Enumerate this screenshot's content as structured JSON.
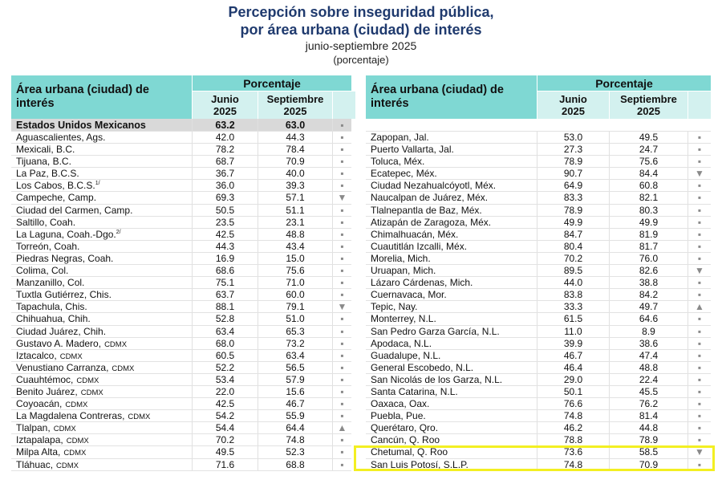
{
  "title": {
    "line1": "Percepción sobre inseguridad pública,",
    "line2": "por área urbana (ciudad) de interés",
    "period": "junio-septiembre 2025",
    "unit": "(porcentaje)"
  },
  "tables": [
    {
      "header": {
        "area": "Área urbana (ciudad) de interés",
        "group": "Porcentaje",
        "col1": "Junio 2025",
        "col2": "Septiembre 2025"
      },
      "national": {
        "name": "Estados Unidos Mexicanos",
        "junio": "63.2",
        "septiembre": "63.0",
        "trend": "▪"
      },
      "rows": [
        {
          "name": "Aguascalientes, Ags.",
          "junio": "42.0",
          "septiembre": "44.3",
          "trend": "▪"
        },
        {
          "name": "Mexicali, B.C.",
          "junio": "78.2",
          "septiembre": "78.4",
          "trend": "▪"
        },
        {
          "name": "Tijuana, B.C.",
          "junio": "68.7",
          "septiembre": "70.9",
          "trend": "▪"
        },
        {
          "name": "La Paz, B.C.S.",
          "junio": "36.7",
          "septiembre": "40.0",
          "trend": "▪"
        },
        {
          "name": "Los Cabos, B.C.S.",
          "sup": "1/",
          "junio": "36.0",
          "septiembre": "39.3",
          "trend": "▪"
        },
        {
          "name": "Campeche, Camp.",
          "junio": "69.3",
          "septiembre": "57.1",
          "trend": "▼"
        },
        {
          "name": "Ciudad del Carmen, Camp.",
          "junio": "50.5",
          "septiembre": "51.1",
          "trend": "▪"
        },
        {
          "name": "Saltillo, Coah.",
          "junio": "23.5",
          "septiembre": "23.1",
          "trend": "▪"
        },
        {
          "name": "La Laguna, Coah.-Dgo.",
          "sup": "2/",
          "junio": "42.5",
          "septiembre": "48.8",
          "trend": "▪"
        },
        {
          "name": "Torreón, Coah.",
          "junio": "44.3",
          "septiembre": "43.4",
          "trend": "▪"
        },
        {
          "name": "Piedras Negras, Coah.",
          "junio": "16.9",
          "septiembre": "15.0",
          "trend": "▪"
        },
        {
          "name": "Colima, Col.",
          "junio": "68.6",
          "septiembre": "75.6",
          "trend": "▪"
        },
        {
          "name": "Manzanillo, Col.",
          "junio": "75.1",
          "septiembre": "71.0",
          "trend": "▪"
        },
        {
          "name": "Tuxtla Gutiérrez, Chis.",
          "junio": "63.7",
          "septiembre": "60.0",
          "trend": "▪"
        },
        {
          "name": "Tapachula, Chis.",
          "junio": "88.1",
          "septiembre": "79.1",
          "trend": "▼"
        },
        {
          "name": "Chihuahua, Chih.",
          "junio": "52.8",
          "septiembre": "51.0",
          "trend": "▪"
        },
        {
          "name": "Ciudad Juárez, Chih.",
          "junio": "63.4",
          "septiembre": "65.3",
          "trend": "▪"
        },
        {
          "name": "Gustavo A. Madero,",
          "tag": "CDMX",
          "junio": "68.0",
          "septiembre": "73.2",
          "trend": "▪"
        },
        {
          "name": "Iztacalco,",
          "tag": "CDMX",
          "junio": "60.5",
          "septiembre": "63.4",
          "trend": "▪"
        },
        {
          "name": "Venustiano Carranza,",
          "tag": "CDMX",
          "junio": "52.2",
          "septiembre": "56.5",
          "trend": "▪"
        },
        {
          "name": "Cuauhtémoc,",
          "tag": "CDMX",
          "junio": "53.4",
          "septiembre": "57.9",
          "trend": "▪"
        },
        {
          "name": "Benito Juárez,",
          "tag": "CDMX",
          "junio": "22.0",
          "septiembre": "15.6",
          "trend": "▪"
        },
        {
          "name": "Coyoacán,",
          "tag": "CDMX",
          "junio": "42.5",
          "septiembre": "46.7",
          "trend": "▪"
        },
        {
          "name": "La Magdalena Contreras,",
          "tag": "CDMX",
          "junio": "54.2",
          "septiembre": "55.9",
          "trend": "▪"
        },
        {
          "name": "Tlalpan,",
          "tag": "CDMX",
          "junio": "54.4",
          "septiembre": "64.4",
          "trend": "▲"
        },
        {
          "name": "Iztapalapa,",
          "tag": "CDMX",
          "junio": "70.2",
          "septiembre": "74.8",
          "trend": "▪"
        },
        {
          "name": "Milpa Alta,",
          "tag": "CDMX",
          "junio": "49.5",
          "septiembre": "52.3",
          "trend": "▪"
        },
        {
          "name": "Tláhuac,",
          "tag": "CDMX",
          "junio": "71.6",
          "septiembre": "68.8",
          "trend": "▪"
        }
      ]
    },
    {
      "header": {
        "area": "Área urbana (ciudad) de interés",
        "group": "Porcentaje",
        "col1": "Junio 2025",
        "col2": "Septiembre 2025"
      },
      "rows": [
        {
          "name": "Zapopan, Jal.",
          "junio": "53.0",
          "septiembre": "49.5",
          "trend": "▪"
        },
        {
          "name": "Puerto Vallarta, Jal.",
          "junio": "27.3",
          "septiembre": "24.7",
          "trend": "▪"
        },
        {
          "name": "Toluca, Méx.",
          "junio": "78.9",
          "septiembre": "75.6",
          "trend": "▪"
        },
        {
          "name": "Ecatepec, Méx.",
          "junio": "90.7",
          "septiembre": "84.4",
          "trend": "▼"
        },
        {
          "name": "Ciudad Nezahualcóyotl, Méx.",
          "junio": "64.9",
          "septiembre": "60.8",
          "trend": "▪"
        },
        {
          "name": "Naucalpan de Juárez, Méx.",
          "junio": "83.3",
          "septiembre": "82.1",
          "trend": "▪"
        },
        {
          "name": "Tlalnepantla de Baz, Méx.",
          "junio": "78.9",
          "septiembre": "80.3",
          "trend": "▪"
        },
        {
          "name": "Atizapán de Zaragoza, Méx.",
          "junio": "49.9",
          "septiembre": "49.9",
          "trend": "▪"
        },
        {
          "name": "Chimalhuacán, Méx.",
          "junio": "84.7",
          "septiembre": "81.9",
          "trend": "▪"
        },
        {
          "name": "Cuautitlán Izcalli, Méx.",
          "junio": "80.4",
          "septiembre": "81.7",
          "trend": "▪"
        },
        {
          "name": "Morelia, Mich.",
          "junio": "70.2",
          "septiembre": "76.0",
          "trend": "▪"
        },
        {
          "name": "Uruapan, Mich.",
          "junio": "89.5",
          "septiembre": "82.6",
          "trend": "▼"
        },
        {
          "name": "Lázaro Cárdenas, Mich.",
          "junio": "44.0",
          "septiembre": "38.8",
          "trend": "▪"
        },
        {
          "name": "Cuernavaca, Mor.",
          "junio": "83.8",
          "septiembre": "84.2",
          "trend": "▪"
        },
        {
          "name": "Tepic, Nay.",
          "junio": "33.3",
          "septiembre": "49.7",
          "trend": "▲"
        },
        {
          "name": "Monterrey, N.L.",
          "junio": "61.5",
          "septiembre": "64.6",
          "trend": "▪"
        },
        {
          "name": "San Pedro Garza García, N.L.",
          "junio": "11.0",
          "septiembre": "8.9",
          "trend": "▪"
        },
        {
          "name": "Apodaca, N.L.",
          "junio": "39.9",
          "septiembre": "38.6",
          "trend": "▪"
        },
        {
          "name": "Guadalupe, N.L.",
          "junio": "46.7",
          "septiembre": "47.4",
          "trend": "▪"
        },
        {
          "name": "General Escobedo, N.L.",
          "junio": "46.4",
          "septiembre": "48.8",
          "trend": "▪"
        },
        {
          "name": "San Nicolás de los Garza, N.L.",
          "junio": "29.0",
          "septiembre": "22.4",
          "trend": "▪"
        },
        {
          "name": "Santa Catarina, N.L.",
          "junio": "50.1",
          "septiembre": "45.5",
          "trend": "▪"
        },
        {
          "name": "Oaxaca, Oax.",
          "junio": "76.6",
          "septiembre": "76.2",
          "trend": "▪"
        },
        {
          "name": "Puebla, Pue.",
          "junio": "74.8",
          "septiembre": "81.4",
          "trend": "▪"
        },
        {
          "name": "Querétaro, Qro.",
          "junio": "46.2",
          "septiembre": "44.8",
          "trend": "▪"
        },
        {
          "name": "Cancún, Q. Roo",
          "junio": "78.8",
          "septiembre": "78.9",
          "trend": "▪"
        },
        {
          "name": "Chetumal, Q. Roo",
          "junio": "73.6",
          "septiembre": "58.5",
          "trend": "▼"
        },
        {
          "name": "San Luis Potosí, S.L.P.",
          "junio": "74.8",
          "septiembre": "70.9",
          "trend": "▪"
        }
      ]
    }
  ]
}
